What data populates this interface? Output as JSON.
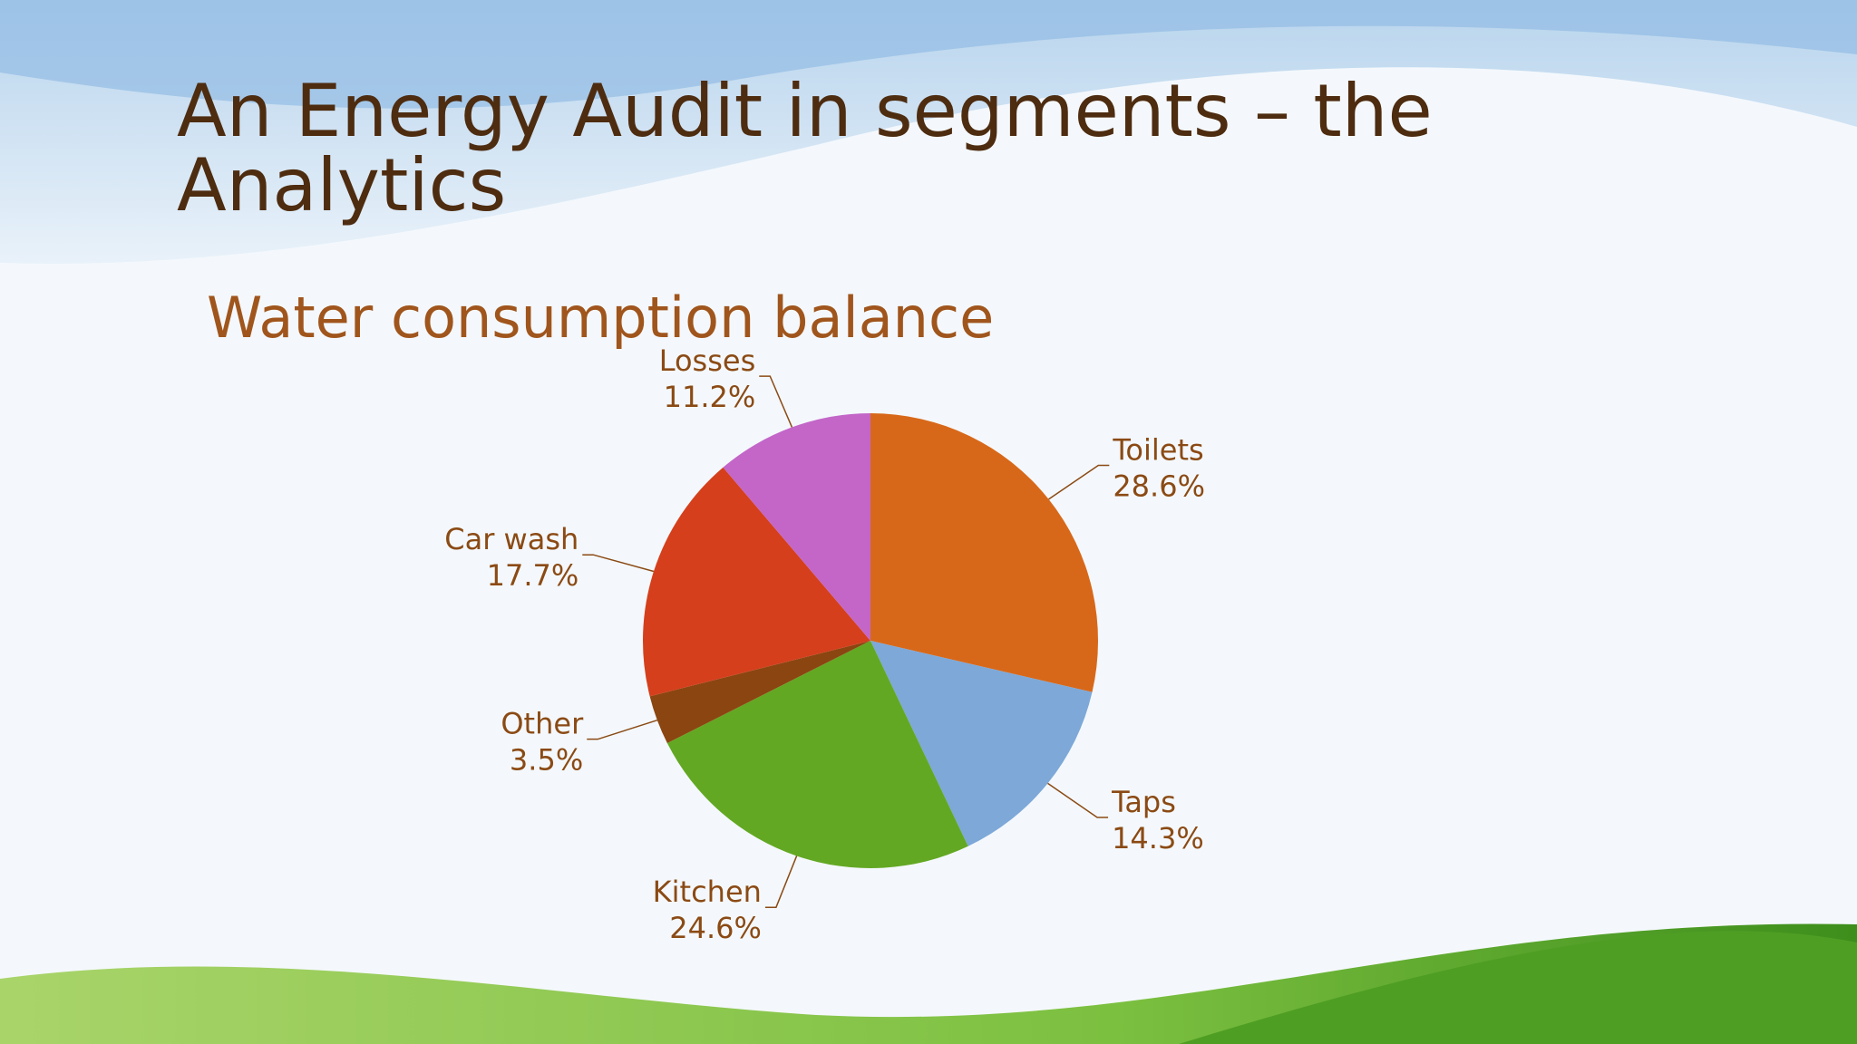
{
  "slide": {
    "title": "An Energy Audit in segments – the Analytics"
  },
  "chart_data": {
    "type": "pie",
    "title": "Water consumption balance",
    "categories": [
      "Toilets",
      "Taps",
      "Kitchen",
      "Other",
      "Car wash",
      "Losses"
    ],
    "values": [
      28.6,
      14.3,
      24.6,
      3.5,
      17.7,
      11.2
    ],
    "value_labels": [
      "28.6%",
      "14.3%",
      "24.6%",
      "3.5%",
      "17.7%",
      "11.2%"
    ],
    "colors": [
      "#d86819",
      "#7da8d8",
      "#63a823",
      "#8b4510",
      "#d53f1c",
      "#c366c8"
    ]
  }
}
